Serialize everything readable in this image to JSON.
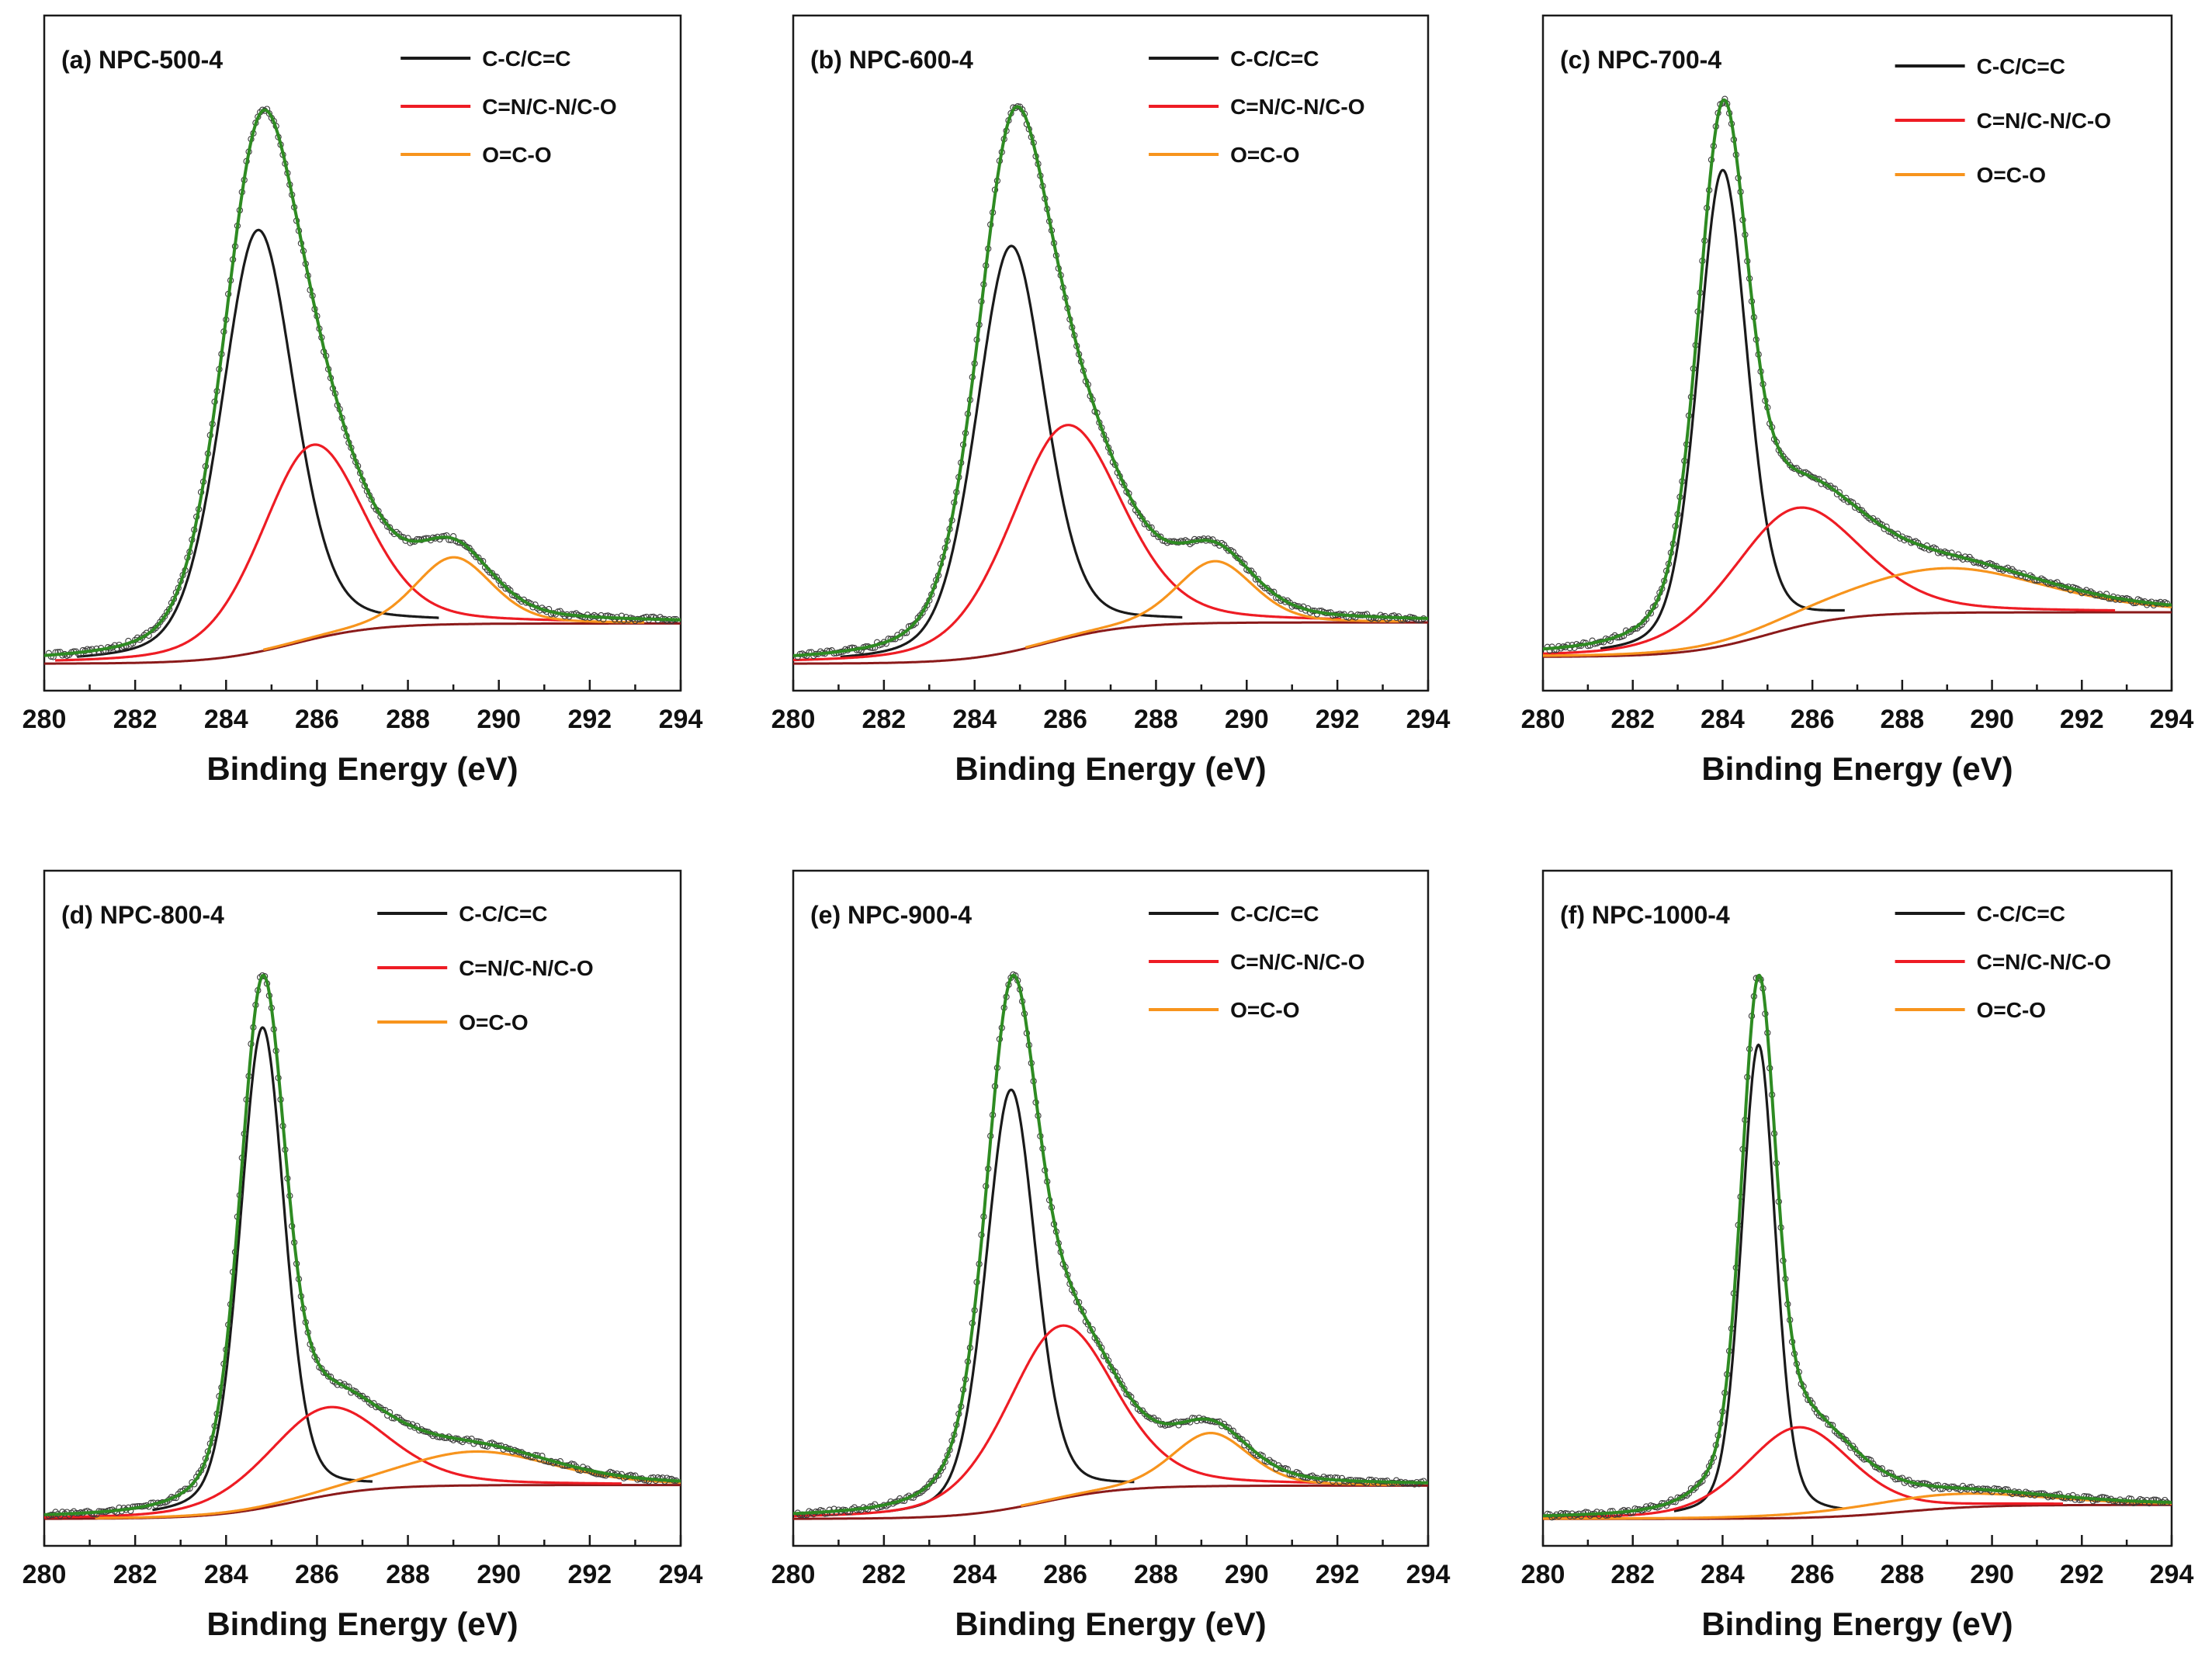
{
  "chart_data": [
    {
      "type": "line",
      "title": "(a) NPC-500-4",
      "xlabel": "Binding Energy (eV)",
      "ylabel": "",
      "xlim": [
        280,
        294
      ],
      "x_ticks": [
        "280",
        "282",
        "284",
        "286",
        "288",
        "290",
        "292",
        "294"
      ],
      "legend": [
        "C-C/C=C",
        "C=N/C-N/C-O",
        "O=C-O"
      ],
      "peaks": [
        {
          "component": "C-C/C=C",
          "center_eV": 284.7,
          "height": 0.63
        },
        {
          "component": "C=N/C-N/C-O",
          "center_eV": 285.9,
          "height": 0.29
        },
        {
          "component": "O=C-O",
          "center_eV": 289.0,
          "height": 0.1
        }
      ],
      "baseline": {
        "low": 0.0,
        "high": 0.06,
        "step_center_eV": 285.5
      }
    },
    {
      "type": "line",
      "title": "(b) NPC-600-4",
      "xlabel": "Binding Energy (eV)",
      "ylabel": "",
      "xlim": [
        280,
        294
      ],
      "x_ticks": [
        "280",
        "282",
        "284",
        "286",
        "288",
        "290",
        "292",
        "294"
      ],
      "legend": [
        "C-C/C=C",
        "C=N/C-N/C-O",
        "O=C-O"
      ],
      "peaks": [
        {
          "component": "C-C/C=C",
          "center_eV": 284.8,
          "height": 0.59
        },
        {
          "component": "C=N/C-N/C-O",
          "center_eV": 286.0,
          "height": 0.31
        },
        {
          "component": "O=C-O",
          "center_eV": 289.3,
          "height": 0.09
        }
      ],
      "baseline": {
        "low": 0.0,
        "high": 0.06,
        "step_center_eV": 285.6
      }
    },
    {
      "type": "line",
      "title": "(c) NPC-700-4",
      "xlabel": "Binding Energy (eV)",
      "ylabel": "",
      "xlim": [
        280,
        294
      ],
      "x_ticks": [
        "280",
        "282",
        "284",
        "286",
        "288",
        "290",
        "292",
        "294"
      ],
      "legend": [
        "C-C/C=C",
        "C=N/C-N/C-O",
        "O=C-O"
      ],
      "peaks": [
        {
          "component": "C-C/C=C",
          "center_eV": 284.0,
          "height": 0.64
        },
        {
          "component": "C=N/C-N/C-O",
          "center_eV": 285.6,
          "height": 0.16
        },
        {
          "component": "O=C-O",
          "center_eV": 289.0,
          "height": 0.06
        }
      ],
      "baseline": {
        "low": 0.0,
        "high": 0.06,
        "step_center_eV": 285.0
      }
    },
    {
      "type": "line",
      "title": "(d) NPC-800-4",
      "xlabel": "Binding Energy (eV)",
      "ylabel": "",
      "xlim": [
        280,
        294
      ],
      "x_ticks": [
        "280",
        "282",
        "284",
        "286",
        "288",
        "290",
        "292",
        "294"
      ],
      "legend": [
        "C-C/C=C",
        "C=N/C-N/C-O",
        "O=C-O"
      ],
      "peaks": [
        {
          "component": "C-C/C=C",
          "center_eV": 284.8,
          "height": 0.71
        },
        {
          "component": "C=N/C-N/C-O",
          "center_eV": 286.2,
          "height": 0.13
        },
        {
          "component": "O=C-O",
          "center_eV": 289.5,
          "height": 0.05
        }
      ],
      "baseline": {
        "low": 0.0,
        "high": 0.05,
        "step_center_eV": 285.5
      }
    },
    {
      "type": "line",
      "title": "(e) NPC-900-4",
      "xlabel": "Binding Energy (eV)",
      "ylabel": "",
      "xlim": [
        280,
        294
      ],
      "x_ticks": [
        "280",
        "282",
        "284",
        "286",
        "288",
        "290",
        "292",
        "294"
      ],
      "legend": [
        "C-C/C=C",
        "C=N/C-N/C-O",
        "O=C-O"
      ],
      "peaks": [
        {
          "component": "C-C/C=C",
          "center_eV": 284.8,
          "height": 0.63
        },
        {
          "component": "C=N/C-N/C-O",
          "center_eV": 285.9,
          "height": 0.26
        },
        {
          "component": "O=C-O",
          "center_eV": 289.2,
          "height": 0.08
        }
      ],
      "baseline": {
        "low": 0.0,
        "high": 0.05,
        "step_center_eV": 285.5
      }
    },
    {
      "type": "line",
      "title": "(f) NPC-1000-4",
      "xlabel": "Binding Energy (eV)",
      "ylabel": "",
      "xlim": [
        280,
        294
      ],
      "x_ticks": [
        "280",
        "282",
        "284",
        "286",
        "288",
        "290",
        "292",
        "294"
      ],
      "legend": [
        "C-C/C=C",
        "C=N/C-N/C-O",
        "O=C-O"
      ],
      "peaks": [
        {
          "component": "C-C/C=C",
          "center_eV": 284.8,
          "height": 0.68
        },
        {
          "component": "C=N/C-N/C-O",
          "center_eV": 285.7,
          "height": 0.13
        },
        {
          "component": "O=C-O",
          "center_eV": 289.0,
          "height": 0.02
        }
      ],
      "baseline": {
        "low": 0.0,
        "high": 0.02,
        "step_center_eV": 288.0
      }
    }
  ],
  "colors": {
    "component_1": "#1a1a1a",
    "component_2": "#ee1c24",
    "component_3": "#f7941d",
    "baseline": "#8b1a1a",
    "envelope": "#2e8b22",
    "data_points": "#3a3a3a"
  }
}
